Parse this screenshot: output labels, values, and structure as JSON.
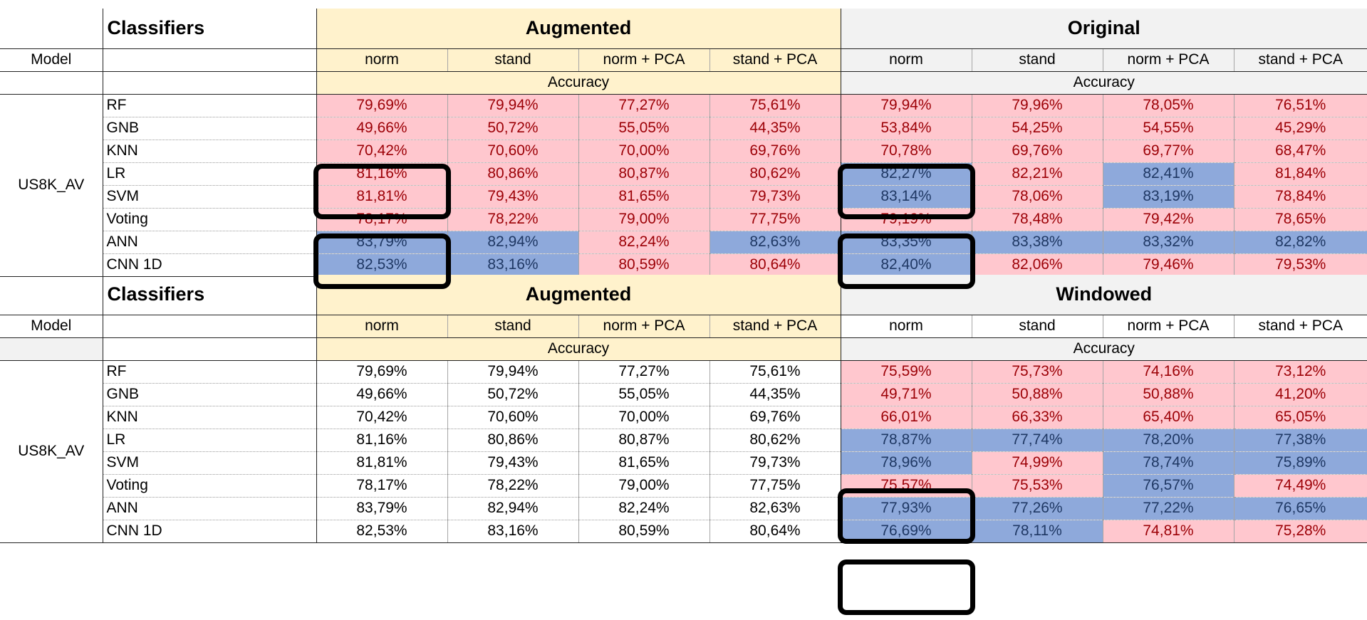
{
  "tables": [
    {
      "header": {
        "classifiers": "Classifiers",
        "group_a": "Augmented",
        "group_b": "Original"
      },
      "columns": {
        "model": "Model",
        "a": [
          "norm",
          "stand",
          "norm + PCA",
          "stand + PCA"
        ],
        "b": [
          "norm",
          "stand",
          "norm + PCA",
          "stand + PCA"
        ]
      },
      "accuracy_a": "Accuracy",
      "accuracy_b": "Accuracy",
      "model": "US8K_AV",
      "rows": [
        {
          "label": "RF",
          "values": [
            "79,69%",
            "79,94%",
            "77,27%",
            "75,61%",
            "79,94%",
            "79,96%",
            "78,05%",
            "76,51%"
          ]
        },
        {
          "label": "GNB",
          "values": [
            "49,66%",
            "50,72%",
            "55,05%",
            "44,35%",
            "53,84%",
            "54,25%",
            "54,55%",
            "45,29%"
          ]
        },
        {
          "label": "KNN",
          "values": [
            "70,42%",
            "70,60%",
            "70,00%",
            "69,76%",
            "70,78%",
            "69,76%",
            "69,77%",
            "68,47%"
          ]
        },
        {
          "label": "LR",
          "values": [
            "81,16%",
            "80,86%",
            "80,87%",
            "80,62%",
            "82,27%",
            "82,21%",
            "82,41%",
            "81,84%"
          ]
        },
        {
          "label": "SVM",
          "values": [
            "81,81%",
            "79,43%",
            "81,65%",
            "79,73%",
            "83,14%",
            "78,06%",
            "83,19%",
            "78,84%"
          ]
        },
        {
          "label": "Voting",
          "values": [
            "78,17%",
            "78,22%",
            "79,00%",
            "77,75%",
            "79,19%",
            "78,48%",
            "79,42%",
            "78,65%"
          ]
        },
        {
          "label": "ANN",
          "values": [
            "83,79%",
            "82,94%",
            "82,24%",
            "82,63%",
            "83,35%",
            "83,38%",
            "83,32%",
            "82,82%"
          ]
        },
        {
          "label": "CNN 1D",
          "values": [
            "82,53%",
            "83,16%",
            "80,59%",
            "80,64%",
            "82,40%",
            "82,06%",
            "79,46%",
            "79,53%"
          ]
        }
      ],
      "cell_colors": [
        [
          "pink",
          "pink",
          "pink",
          "pink",
          "pink",
          "pink",
          "pink",
          "pink"
        ],
        [
          "pink",
          "pink",
          "pink",
          "pink",
          "pink",
          "pink",
          "pink",
          "pink"
        ],
        [
          "pink",
          "pink",
          "pink",
          "pink",
          "pink",
          "pink",
          "pink",
          "pink"
        ],
        [
          "pink",
          "pink",
          "pink",
          "pink",
          "blue",
          "pink",
          "blue",
          "pink"
        ],
        [
          "pink",
          "pink",
          "pink",
          "pink",
          "blue",
          "pink",
          "blue",
          "pink"
        ],
        [
          "pink",
          "pink",
          "pink",
          "pink",
          "pink",
          "pink",
          "pink",
          "pink"
        ],
        [
          "blue",
          "blue",
          "pink",
          "blue",
          "blue",
          "blue",
          "blue",
          "blue"
        ],
        [
          "blue",
          "blue",
          "pink",
          "pink",
          "blue",
          "pink",
          "pink",
          "pink"
        ]
      ]
    },
    {
      "header": {
        "classifiers": "Classifiers",
        "group_a": "Augmented",
        "group_b": "Windowed"
      },
      "columns": {
        "model": "Model",
        "a": [
          "norm",
          "stand",
          "norm + PCA",
          "stand + PCA"
        ],
        "b": [
          "norm",
          "stand",
          "norm + PCA",
          "stand + PCA"
        ]
      },
      "accuracy_a": "Accuracy",
      "accuracy_b": "Accuracy",
      "model": "US8K_AV",
      "rows": [
        {
          "label": "RF",
          "values": [
            "79,69%",
            "79,94%",
            "77,27%",
            "75,61%",
            "75,59%",
            "75,73%",
            "74,16%",
            "73,12%"
          ]
        },
        {
          "label": "GNB",
          "values": [
            "49,66%",
            "50,72%",
            "55,05%",
            "44,35%",
            "49,71%",
            "50,88%",
            "50,88%",
            "41,20%"
          ]
        },
        {
          "label": "KNN",
          "values": [
            "70,42%",
            "70,60%",
            "70,00%",
            "69,76%",
            "66,01%",
            "66,33%",
            "65,40%",
            "65,05%"
          ]
        },
        {
          "label": "LR",
          "values": [
            "81,16%",
            "80,86%",
            "80,87%",
            "80,62%",
            "78,87%",
            "77,74%",
            "78,20%",
            "77,38%"
          ]
        },
        {
          "label": "SVM",
          "values": [
            "81,81%",
            "79,43%",
            "81,65%",
            "79,73%",
            "78,96%",
            "74,99%",
            "78,74%",
            "75,89%"
          ]
        },
        {
          "label": "Voting",
          "values": [
            "78,17%",
            "78,22%",
            "79,00%",
            "77,75%",
            "75,57%",
            "75,53%",
            "76,57%",
            "74,49%"
          ]
        },
        {
          "label": "ANN",
          "values": [
            "83,79%",
            "82,94%",
            "82,24%",
            "82,63%",
            "77,93%",
            "77,26%",
            "77,22%",
            "76,65%"
          ]
        },
        {
          "label": "CNN 1D",
          "values": [
            "82,53%",
            "83,16%",
            "80,59%",
            "80,64%",
            "76,69%",
            "78,11%",
            "74,81%",
            "75,28%"
          ]
        }
      ],
      "cell_colors": [
        [
          "plain",
          "plain",
          "plain",
          "plain",
          "pink",
          "pink",
          "pink",
          "pink"
        ],
        [
          "plain",
          "plain",
          "plain",
          "plain",
          "pink",
          "pink",
          "pink",
          "pink"
        ],
        [
          "plain",
          "plain",
          "plain",
          "plain",
          "pink",
          "pink",
          "pink",
          "pink"
        ],
        [
          "plain",
          "plain",
          "plain",
          "plain",
          "blue",
          "blue",
          "blue",
          "blue"
        ],
        [
          "plain",
          "plain",
          "plain",
          "plain",
          "blue",
          "pink",
          "blue",
          "blue"
        ],
        [
          "plain",
          "plain",
          "plain",
          "plain",
          "pink",
          "pink",
          "blue",
          "pink"
        ],
        [
          "plain",
          "plain",
          "plain",
          "plain",
          "blue",
          "blue",
          "blue",
          "blue"
        ],
        [
          "plain",
          "plain",
          "plain",
          "plain",
          "blue",
          "blue",
          "pink",
          "pink"
        ]
      ]
    }
  ],
  "colors": {
    "augmented_bg": "#fff2cc",
    "original_bg": "#f2f2f2",
    "cell_pink": "#ffc7ce",
    "cell_pink_text": "#9c0006",
    "cell_blue": "#8ea9db",
    "cell_blue_text": "#1f3864",
    "highlight_frame": "#000000"
  }
}
